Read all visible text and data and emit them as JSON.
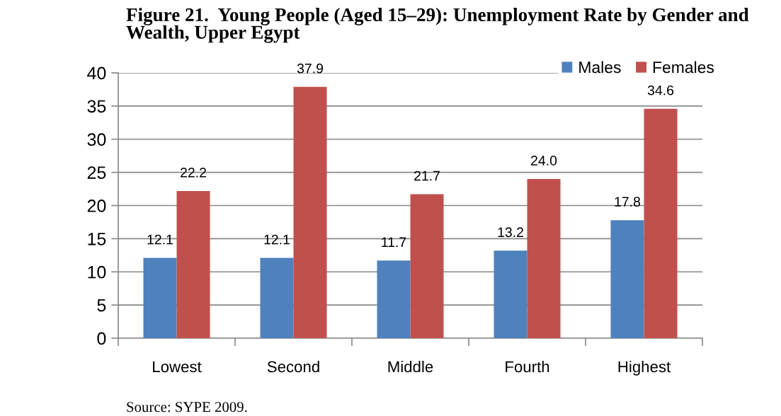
{
  "chart_data": {
    "type": "bar",
    "title": "Figure 21.  Young People (Aged 15–29): Unemployment Rate by Gender and\nWealth, Upper Egypt",
    "categories": [
      "Lowest",
      "Second",
      "Middle",
      "Fourth",
      "Highest"
    ],
    "series": [
      {
        "name": "Males",
        "color": "#4f81bd",
        "values": [
          12.1,
          12.1,
          11.7,
          13.2,
          17.8
        ],
        "value_labels": [
          "12.1",
          "12.1",
          "11.7",
          "13.2",
          "17.8"
        ]
      },
      {
        "name": "Females",
        "color": "#c0504d",
        "values": [
          22.2,
          37.9,
          21.7,
          24.0,
          34.6
        ],
        "value_labels": [
          "22.2",
          "37.9",
          "21.7",
          "24.0",
          "34.6"
        ]
      }
    ],
    "ylim": [
      0,
      40
    ],
    "yticks": [
      0,
      5,
      10,
      15,
      20,
      25,
      30,
      35,
      40
    ],
    "grid": "y",
    "legend": "top right",
    "annotations": [
      "Source: SYPE 2009."
    ]
  }
}
